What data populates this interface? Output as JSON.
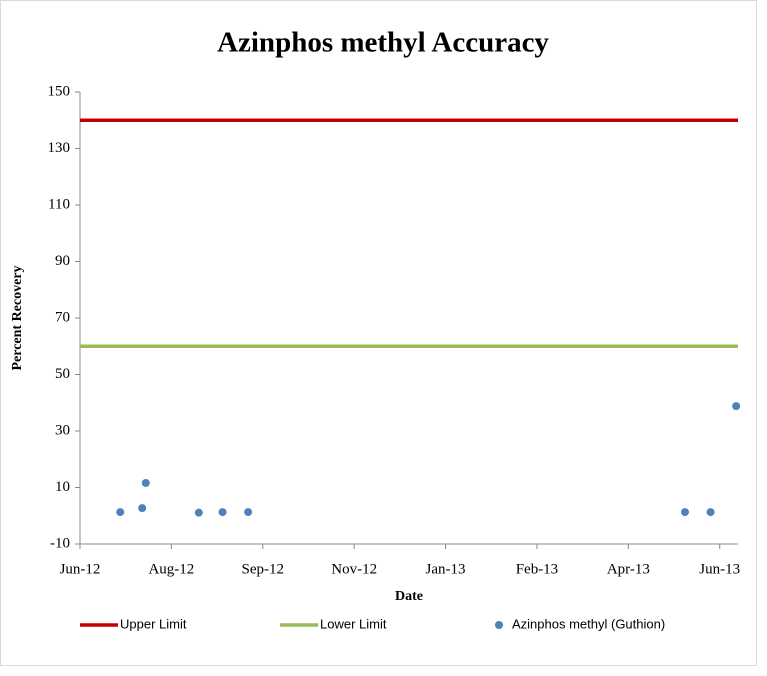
{
  "chart_data": {
    "type": "scatter",
    "title": "Azinphos methyl Accuracy",
    "x_label": "Date",
    "y_label": "Percent Recovery",
    "xlim": [
      41080,
      41440
    ],
    "xticks": [
      {
        "value": 41080,
        "label": "Jun-12"
      },
      {
        "value": 41130,
        "label": "Aug-12"
      },
      {
        "value": 41180,
        "label": "Sep-12"
      },
      {
        "value": 41230,
        "label": "Nov-12"
      },
      {
        "value": 41280,
        "label": "Jan-13"
      },
      {
        "value": 41330,
        "label": "Feb-13"
      },
      {
        "value": 41380,
        "label": "Apr-13"
      },
      {
        "value": 41430,
        "label": "Jun-13"
      }
    ],
    "ylim": [
      -10,
      150
    ],
    "yticks": [
      -10,
      10,
      30,
      50,
      70,
      90,
      110,
      130,
      150
    ],
    "grid": false,
    "legend": "bottom",
    "series": [
      {
        "name": "Upper Limit",
        "kind": "line",
        "color": "#c00000",
        "x": [
          41080,
          41440
        ],
        "values": [
          140,
          140
        ]
      },
      {
        "name": "Lower Limit",
        "kind": "line",
        "color": "#9bbb59",
        "x": [
          41080,
          41440
        ],
        "values": [
          60,
          60
        ]
      },
      {
        "name": "Azinphos methyl (Guthion)",
        "kind": "marker",
        "color": "#4f81bd",
        "x": [
          41102,
          41114,
          41116,
          41145,
          41158,
          41172,
          41411,
          41425,
          41439
        ],
        "values": [
          1.3,
          2.7,
          11.6,
          1.1,
          1.3,
          1.3,
          1.3,
          1.3,
          38.8
        ]
      }
    ]
  }
}
